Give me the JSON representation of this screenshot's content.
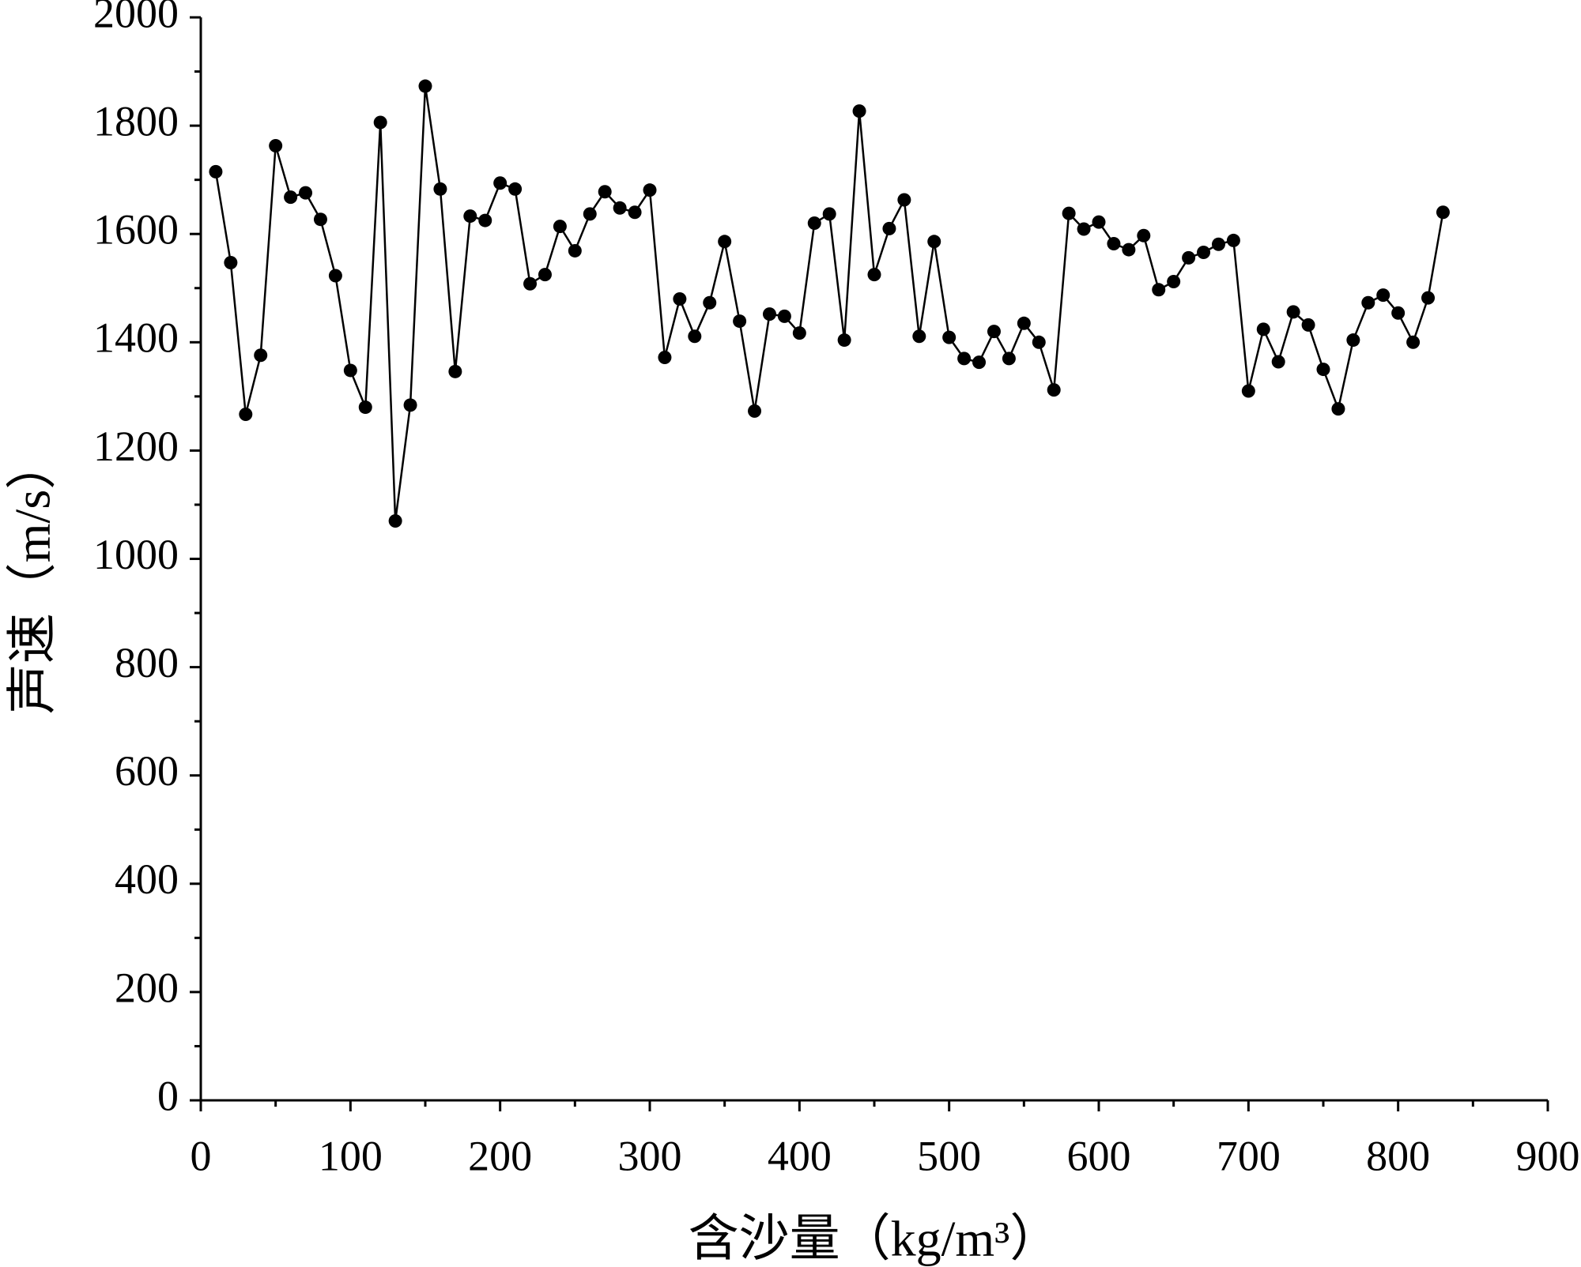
{
  "chart_data": {
    "type": "line",
    "xlabel": "含沙量（kg/m³）",
    "ylabel": "声速（m/s）",
    "x": [
      10,
      20,
      30,
      40,
      50,
      60,
      70,
      80,
      90,
      100,
      110,
      120,
      130,
      140,
      150,
      160,
      170,
      180,
      190,
      200,
      210,
      220,
      230,
      240,
      250,
      260,
      270,
      280,
      290,
      300,
      310,
      320,
      330,
      340,
      350,
      360,
      370,
      380,
      390,
      400,
      410,
      420,
      430,
      440,
      450,
      460,
      470,
      480,
      490,
      500,
      510,
      520,
      530,
      540,
      550,
      560,
      570,
      580,
      590,
      600,
      610,
      620,
      630,
      640,
      650,
      660,
      670,
      680,
      690,
      700,
      710,
      720,
      730,
      740,
      750,
      760,
      770,
      780,
      790,
      800,
      810,
      820,
      830
    ],
    "series": [
      {
        "color": "#000000",
        "values": [
          1715,
          1547,
          1267,
          1376,
          1763,
          1668,
          1676,
          1627,
          1523,
          1348,
          1280,
          1806,
          1070,
          1284,
          1873,
          1683,
          1346,
          1633,
          1625,
          1694,
          1683,
          1508,
          1525,
          1614,
          1569,
          1637,
          1678,
          1648,
          1640,
          1681,
          1372,
          1480,
          1411,
          1473,
          1586,
          1439,
          1273,
          1452,
          1448,
          1417,
          1620,
          1637,
          1404,
          1827,
          1525,
          1610,
          1663,
          1411,
          1586,
          1409,
          1370,
          1363,
          1420,
          1370,
          1435,
          1400,
          1312,
          1638,
          1609,
          1622,
          1582,
          1571,
          1597,
          1497,
          1512,
          1556,
          1566,
          1581,
          1588,
          1310,
          1424,
          1364,
          1456,
          1432,
          1350,
          1277,
          1404,
          1473,
          1487,
          1454,
          1400,
          1482,
          1640
        ]
      }
    ],
    "xlim": [
      0,
      900
    ],
    "xticks": [
      0,
      100,
      200,
      300,
      400,
      500,
      600,
      700,
      800,
      900
    ],
    "ylim": [
      0,
      2000
    ],
    "yticks": [
      0,
      200,
      400,
      600,
      800,
      1000,
      1200,
      1400,
      1600,
      1800,
      2000
    ]
  }
}
